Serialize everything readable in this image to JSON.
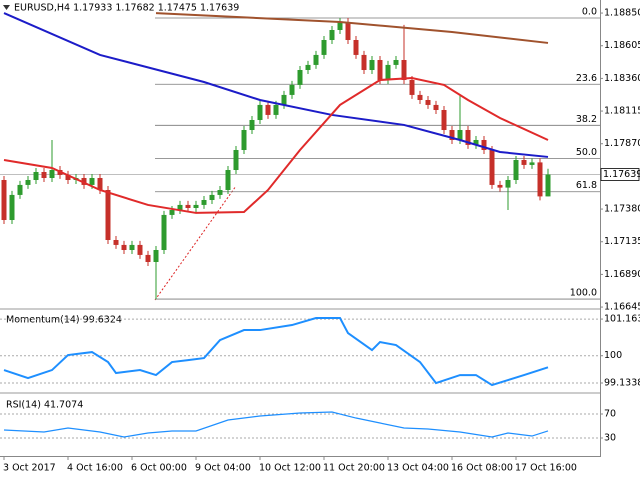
{
  "chart_data": [
    {
      "type": "candlestick",
      "title": "EURUSD,H4  1.17933 1.17682 1.17475 1.17639",
      "categories": [
        "3 Oct 2017",
        null,
        null,
        null,
        null,
        null,
        null,
        null,
        "4 Oct 16:00",
        null,
        null,
        null,
        null,
        null,
        null,
        null,
        "6 Oct 00:00",
        null,
        null,
        null,
        null,
        null,
        null,
        null,
        "9 Oct 04:00",
        null,
        null,
        null,
        null,
        null,
        null,
        null,
        "10 Oct 12:00",
        null,
        null,
        null,
        null,
        null,
        null,
        null,
        "11 Oct 20:00",
        null,
        null,
        null,
        null,
        null,
        null,
        null,
        "13 Oct 04:00",
        null,
        null,
        null,
        null,
        null,
        null,
        null,
        "16 Oct 08:00",
        null,
        null,
        null,
        null,
        null,
        null,
        null,
        "17 Oct 16:00",
        null,
        null,
        null,
        null
      ],
      "open": [
        1.17598,
        1.17298,
        1.17486,
        1.17561,
        1.17598,
        1.17658,
        1.17613,
        1.17673,
        1.17636,
        1.17598,
        1.17613,
        1.17561,
        1.17613,
        1.17523,
        1.17148,
        1.17111,
        1.17073,
        1.17111,
        1.17036,
        1.16983,
        1.17073,
        1.17336,
        1.17373,
        1.17411,
        1.17388,
        1.17411,
        1.17448,
        1.17486,
        1.17523,
        1.17673,
        1.17823,
        1.17973,
        1.18048,
        1.18161,
        1.18086,
        1.18161,
        1.18236,
        1.18311,
        1.18423,
        1.18461,
        1.18536,
        1.18648,
        1.18723,
        1.18783,
        1.18648,
        1.18536,
        1.18423,
        1.18498,
        1.18348,
        1.18461,
        1.18498,
        1.18348,
        1.18236,
        1.18198,
        1.18161,
        1.18123,
        1.17973,
        1.17898,
        1.17973,
        1.17861,
        1.17898,
        1.17823,
        1.17561,
        1.17541,
        1.17598,
        1.17748,
        1.17711,
        1.1773,
        1.17475
      ],
      "high": [
        1.17628,
        1.17516,
        1.17591,
        1.17628,
        1.17688,
        1.17688,
        1.17898,
        1.17703,
        1.17666,
        1.17643,
        1.17643,
        1.17643,
        1.17643,
        1.17553,
        1.17178,
        1.17141,
        1.17141,
        1.17141,
        1.17066,
        1.17103,
        1.17366,
        1.17403,
        1.17441,
        1.17441,
        1.17441,
        1.17478,
        1.17516,
        1.17553,
        1.17703,
        1.17853,
        1.18003,
        1.18078,
        1.18191,
        1.18191,
        1.18191,
        1.18266,
        1.18341,
        1.18453,
        1.18491,
        1.18566,
        1.18678,
        1.18753,
        1.18813,
        1.18813,
        1.18678,
        1.18566,
        1.18528,
        1.18528,
        1.18491,
        1.18528,
        1.18761,
        1.18378,
        1.18266,
        1.18228,
        1.18191,
        1.18153,
        1.18003,
        1.18236,
        1.18003,
        1.17928,
        1.17928,
        1.17853,
        1.17591,
        1.17628,
        1.17778,
        1.17778,
        1.1776,
        1.1776,
        1.17682
      ],
      "low": [
        1.17268,
        1.17268,
        1.17456,
        1.17531,
        1.17568,
        1.17583,
        1.17583,
        1.17606,
        1.17568,
        1.17568,
        1.17531,
        1.17531,
        1.17493,
        1.17118,
        1.17081,
        1.17043,
        1.17043,
        1.17006,
        1.16953,
        1.16705,
        1.17043,
        1.17306,
        1.17343,
        1.17358,
        1.17358,
        1.17381,
        1.17418,
        1.17456,
        1.17493,
        1.17643,
        1.17793,
        1.17943,
        1.18018,
        1.18056,
        1.18056,
        1.18131,
        1.18206,
        1.18281,
        1.18393,
        1.18431,
        1.18506,
        1.18618,
        1.18693,
        1.18618,
        1.18506,
        1.18393,
        1.18393,
        1.18318,
        1.18318,
        1.18431,
        1.18318,
        1.18206,
        1.18168,
        1.18131,
        1.18093,
        1.17943,
        1.17868,
        1.17868,
        1.17831,
        1.17831,
        1.17793,
        1.17531,
        1.17511,
        1.17373,
        1.17568,
        1.17681,
        1.17681,
        1.17445,
        1.17475
      ],
      "close": [
        1.17298,
        1.17486,
        1.17561,
        1.17598,
        1.17658,
        1.17613,
        1.17673,
        1.17636,
        1.17598,
        1.17613,
        1.17561,
        1.17613,
        1.17523,
        1.17148,
        1.17111,
        1.17073,
        1.17111,
        1.17036,
        1.16983,
        1.17073,
        1.17336,
        1.17373,
        1.17411,
        1.17388,
        1.17411,
        1.17448,
        1.17486,
        1.17523,
        1.17673,
        1.17823,
        1.17973,
        1.18048,
        1.18161,
        1.18086,
        1.18161,
        1.18236,
        1.18311,
        1.18423,
        1.18461,
        1.18536,
        1.18648,
        1.18723,
        1.18783,
        1.18648,
        1.18536,
        1.18423,
        1.18498,
        1.18348,
        1.18461,
        1.18498,
        1.18348,
        1.18236,
        1.18198,
        1.18161,
        1.18123,
        1.17973,
        1.17898,
        1.17973,
        1.17861,
        1.17898,
        1.17823,
        1.17561,
        1.17541,
        1.17598,
        1.17748,
        1.17711,
        1.1773,
        1.17475,
        1.17639
      ],
      "up_color": "#2e9b2e",
      "down_color": "#c6302a",
      "ylim": [
        1.16638,
        1.18918
      ],
      "yticks": [
        {
          "value": 1.1885,
          "label": "1.18850"
        },
        1.18605,
        {
          "value": 1.1836,
          "label": "1.18360"
        },
        1.18115,
        {
          "value": 1.1787,
          "label": "1.17870"
        },
        {
          "value": 1.1738,
          "label": "1.17380"
        },
        1.17135,
        {
          "value": 1.1689,
          "label": "1.16890"
        },
        1.16645
      ],
      "last_price": 1.17639,
      "lines": [
        {
          "color": "#a0522d",
          "x": [
            19,
            42,
            56,
            68
          ],
          "values": [
            1.1885,
            1.18783,
            1.18708,
            1.18626
          ]
        },
        {
          "color": "#1c1cc8",
          "x": [
            0,
            12,
            25,
            32,
            41,
            50,
            57,
            62,
            68
          ],
          "values": [
            1.1885,
            1.18536,
            1.18333,
            1.18198,
            1.18086,
            1.18011,
            1.17898,
            1.17808,
            1.17771
          ]
        },
        {
          "color": "#e02a2a",
          "x": [
            0,
            6,
            12,
            18,
            24,
            30,
            33,
            37,
            42,
            47,
            51,
            55,
            58,
            62,
            68
          ],
          "values": [
            1.17748,
            1.17688,
            1.17523,
            1.17411,
            1.17351,
            1.17358,
            1.17523,
            1.17823,
            1.18161,
            1.18348,
            1.18363,
            1.18311,
            1.18198,
            1.18063,
            1.17898
          ]
        }
      ],
      "fib_levels": [
        {
          "level": "0.0",
          "price": 1.18813
        },
        {
          "level": "23.6",
          "price": 1.18316
        },
        {
          "level": "38.2",
          "price": 1.18008
        },
        {
          "level": "50.0",
          "price": 1.17759
        },
        {
          "level": "61.8",
          "price": 1.1751
        },
        {
          "level": "100.0",
          "price": 1.16705
        }
      ]
    },
    {
      "type": "line",
      "title": "Momentum(14) 99.6324",
      "color": "#1e8fff",
      "x": [
        0,
        3,
        6,
        8,
        11,
        13,
        14,
        17,
        19,
        21,
        23,
        25,
        27,
        30,
        32,
        36,
        39,
        42,
        43,
        46,
        47,
        49,
        52,
        54,
        57,
        59,
        61,
        63,
        65,
        68
      ],
      "values": [
        99.545,
        99.291,
        99.545,
        100.021,
        100.116,
        99.799,
        99.45,
        99.545,
        99.386,
        99.799,
        99.862,
        99.926,
        100.497,
        100.815,
        100.815,
        100.974,
        101.196,
        101.196,
        100.72,
        100.18,
        100.434,
        100.339,
        99.799,
        99.132,
        99.386,
        99.386,
        99.069,
        99.227,
        99.386,
        99.6324
      ],
      "ylim": [
        98.88,
        101.42
      ],
      "yticks": [
        101.1638,
        100,
        99.1338
      ]
    },
    {
      "type": "line",
      "title": "RSI(14) 41.7074",
      "color": "#1e8fff",
      "x": [
        0,
        5,
        8,
        12,
        15,
        18,
        21,
        24,
        28,
        32,
        37,
        41,
        44,
        47,
        50,
        53,
        57,
        61,
        63,
        66,
        68
      ],
      "values": [
        43.3,
        40,
        46.7,
        40,
        31.7,
        38.3,
        41.7,
        41.7,
        60,
        66.7,
        71.7,
        73.3,
        63.3,
        55,
        46.7,
        45,
        40,
        31.7,
        38.3,
        33.3,
        41.7074
      ],
      "ylim": [
        0,
        100
      ],
      "yticks": [
        70,
        30
      ]
    }
  ]
}
